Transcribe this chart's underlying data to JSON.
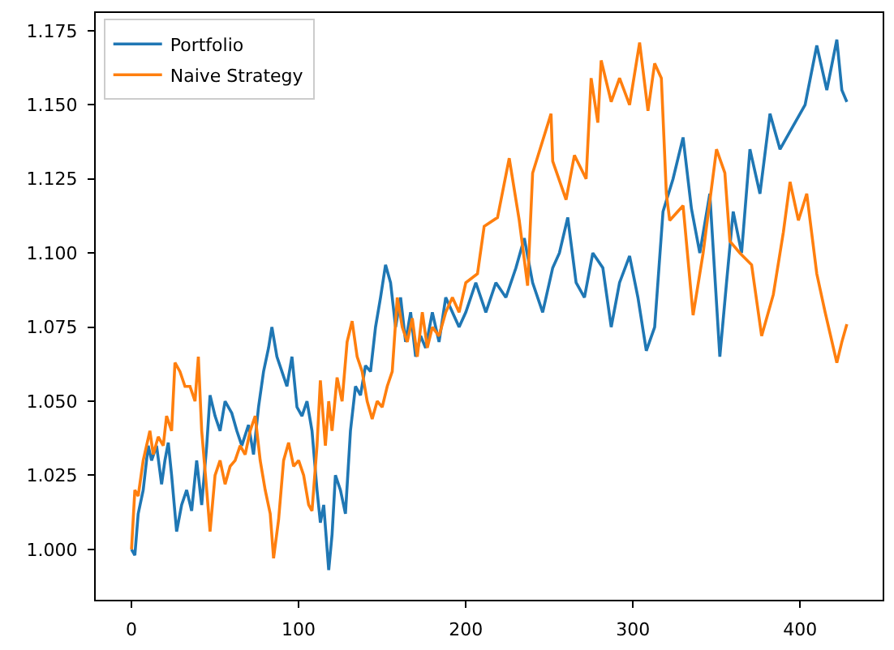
{
  "chart_data": {
    "type": "line",
    "xlim": [
      -21.4,
      449.4
    ],
    "ylim": [
      0.983,
      1.181
    ],
    "xticks": [
      0,
      100,
      200,
      300,
      400
    ],
    "yticks": [
      {
        "value": 1.0,
        "label": "1.000"
      },
      {
        "value": 1.025,
        "label": "1.025"
      },
      {
        "value": 1.05,
        "label": "1.050"
      },
      {
        "value": 1.075,
        "label": "1.075"
      },
      {
        "value": 1.1,
        "label": "1.100"
      },
      {
        "value": 1.125,
        "label": "1.125"
      },
      {
        "value": 1.15,
        "label": "1.150"
      },
      {
        "value": 1.175,
        "label": "1.175"
      }
    ],
    "legend": "top left",
    "series": [
      {
        "name": "Portfolio",
        "color": "#1f77b4",
        "x": [
          0,
          2,
          4,
          7,
          10,
          12,
          15,
          18,
          20,
          22,
          24,
          27,
          30,
          33,
          36,
          39,
          42,
          45,
          47,
          50,
          53,
          56,
          60,
          63,
          66,
          70,
          73,
          76,
          79,
          82,
          84,
          87,
          90,
          93,
          96,
          99,
          102,
          105,
          108,
          111,
          113,
          115,
          118,
          120,
          122,
          125,
          128,
          131,
          134,
          137,
          140,
          143,
          146,
          149,
          152,
          155,
          158,
          161,
          164,
          167,
          170,
          173,
          176,
          180,
          184,
          188,
          192,
          196,
          200,
          206,
          212,
          218,
          224,
          230,
          235,
          240,
          246,
          252,
          256,
          261,
          266,
          271,
          276,
          282,
          287,
          292,
          298,
          303,
          308,
          313,
          318,
          324,
          330,
          335,
          340,
          346,
          352,
          356,
          360,
          365,
          370,
          376,
          382,
          388,
          396,
          403,
          410,
          416,
          422,
          425,
          428
        ],
        "values": [
          1.0,
          0.998,
          1.012,
          1.02,
          1.035,
          1.03,
          1.035,
          1.022,
          1.03,
          1.036,
          1.025,
          1.006,
          1.015,
          1.02,
          1.013,
          1.03,
          1.015,
          1.035,
          1.052,
          1.045,
          1.04,
          1.05,
          1.046,
          1.04,
          1.035,
          1.042,
          1.032,
          1.048,
          1.06,
          1.068,
          1.075,
          1.065,
          1.06,
          1.055,
          1.065,
          1.048,
          1.045,
          1.05,
          1.04,
          1.02,
          1.009,
          1.015,
          0.993,
          1.005,
          1.025,
          1.02,
          1.012,
          1.04,
          1.055,
          1.052,
          1.062,
          1.06,
          1.075,
          1.085,
          1.096,
          1.09,
          1.075,
          1.085,
          1.07,
          1.08,
          1.065,
          1.072,
          1.068,
          1.08,
          1.07,
          1.085,
          1.08,
          1.075,
          1.08,
          1.09,
          1.08,
          1.09,
          1.085,
          1.095,
          1.105,
          1.09,
          1.08,
          1.095,
          1.1,
          1.112,
          1.09,
          1.085,
          1.1,
          1.095,
          1.075,
          1.09,
          1.099,
          1.085,
          1.067,
          1.075,
          1.114,
          1.125,
          1.139,
          1.115,
          1.1,
          1.12,
          1.065,
          1.09,
          1.114,
          1.1,
          1.135,
          1.12,
          1.147,
          1.135,
          1.143,
          1.15,
          1.17,
          1.155,
          1.172,
          1.155,
          1.151
        ]
      },
      {
        "name": "Naive Strategy",
        "color": "#ff7f0e",
        "x": [
          0,
          2,
          4,
          7,
          9,
          11,
          13,
          16,
          19,
          21,
          24,
          26,
          29,
          32,
          35,
          38,
          40,
          42,
          45,
          47,
          50,
          53,
          56,
          59,
          62,
          65,
          68,
          71,
          74,
          77,
          80,
          83,
          85,
          88,
          91,
          94,
          97,
          100,
          103,
          106,
          108,
          111,
          113,
          116,
          118,
          120,
          123,
          126,
          129,
          132,
          135,
          138,
          141,
          144,
          147,
          150,
          153,
          156,
          159,
          162,
          165,
          168,
          171,
          174,
          177,
          180,
          184,
          188,
          192,
          196,
          200,
          207,
          211,
          219,
          226,
          232,
          237,
          240,
          251,
          252,
          260,
          265,
          272,
          275,
          279,
          281,
          287,
          292,
          298,
          304,
          309,
          313,
          317,
          320,
          322,
          330,
          336,
          342,
          350,
          355,
          358,
          364,
          371,
          377,
          384,
          390,
          394,
          399,
          404,
          410,
          415,
          422,
          425,
          428
        ],
        "values": [
          1.0,
          1.02,
          1.018,
          1.03,
          1.035,
          1.04,
          1.032,
          1.038,
          1.035,
          1.045,
          1.04,
          1.063,
          1.06,
          1.055,
          1.055,
          1.05,
          1.065,
          1.04,
          1.02,
          1.006,
          1.025,
          1.03,
          1.022,
          1.028,
          1.03,
          1.035,
          1.032,
          1.04,
          1.045,
          1.03,
          1.02,
          1.012,
          0.997,
          1.01,
          1.03,
          1.036,
          1.028,
          1.03,
          1.025,
          1.015,
          1.013,
          1.035,
          1.057,
          1.035,
          1.05,
          1.04,
          1.058,
          1.05,
          1.07,
          1.077,
          1.065,
          1.06,
          1.05,
          1.044,
          1.05,
          1.048,
          1.055,
          1.06,
          1.085,
          1.075,
          1.07,
          1.078,
          1.065,
          1.08,
          1.068,
          1.075,
          1.072,
          1.08,
          1.085,
          1.08,
          1.09,
          1.093,
          1.109,
          1.112,
          1.132,
          1.111,
          1.089,
          1.127,
          1.147,
          1.131,
          1.118,
          1.133,
          1.125,
          1.159,
          1.144,
          1.165,
          1.151,
          1.159,
          1.15,
          1.171,
          1.148,
          1.164,
          1.159,
          1.12,
          1.111,
          1.116,
          1.079,
          1.1,
          1.135,
          1.127,
          1.104,
          1.1,
          1.096,
          1.072,
          1.086,
          1.107,
          1.124,
          1.111,
          1.12,
          1.093,
          1.08,
          1.063,
          1.07,
          1.076
        ]
      }
    ]
  }
}
